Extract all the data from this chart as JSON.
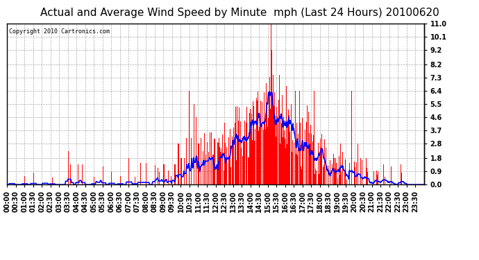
{
  "title": "Actual and Average Wind Speed by Minute  mph (Last 24 Hours) 20100620",
  "copyright": "Copyright 2010 Cartronics.com",
  "yticks": [
    0.0,
    0.9,
    1.8,
    2.8,
    3.7,
    4.6,
    5.5,
    6.4,
    7.3,
    8.2,
    9.2,
    10.1,
    11.0
  ],
  "ylim": [
    0,
    11.0
  ],
  "bar_color": "#ff0000",
  "line_color": "#0000ff",
  "bg_color": "#ffffff",
  "grid_color": "#aaaaaa",
  "title_fontsize": 11,
  "tick_fontsize": 7,
  "n_minutes": 1440
}
